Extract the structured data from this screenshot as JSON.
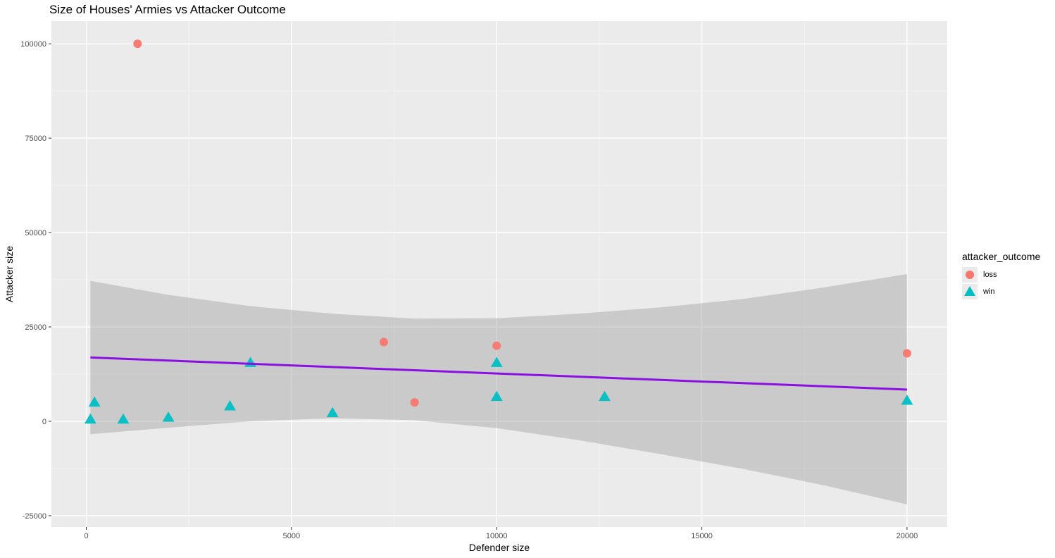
{
  "chart_data": {
    "type": "scatter",
    "title": "Size of Houses' Armies vs Attacker Outcome",
    "xlabel": "Defender size",
    "ylabel": "Attacker size",
    "xlim": [
      -850,
      20980
    ],
    "ylim": [
      -28000,
      106000
    ],
    "x_ticks": [
      0,
      5000,
      10000,
      15000,
      20000
    ],
    "x_tick_labels": [
      "0",
      "5000",
      "10000",
      "15000",
      "20000"
    ],
    "y_ticks": [
      -25000,
      0,
      25000,
      50000,
      75000,
      100000
    ],
    "y_tick_labels": [
      "-25000",
      "0",
      "25000",
      "50000",
      "75000",
      "100000"
    ],
    "grid": true,
    "legend_position": "right",
    "legend_title": "attacker_outcome",
    "series": [
      {
        "name": "loss",
        "shape": "circle",
        "color": "#F8766D",
        "points": [
          {
            "x": 1250,
            "y": 100000
          },
          {
            "x": 7250,
            "y": 21000
          },
          {
            "x": 10000,
            "y": 20000
          },
          {
            "x": 20000,
            "y": 18000
          },
          {
            "x": 8000,
            "y": 5000
          }
        ]
      },
      {
        "name": "win",
        "shape": "triangle",
        "color": "#00BFC4",
        "points": [
          {
            "x": 100,
            "y": 500
          },
          {
            "x": 200,
            "y": 5000
          },
          {
            "x": 900,
            "y": 500
          },
          {
            "x": 2000,
            "y": 1000
          },
          {
            "x": 3500,
            "y": 4000
          },
          {
            "x": 4000,
            "y": 15500
          },
          {
            "x": 6000,
            "y": 2200
          },
          {
            "x": 10000,
            "y": 15500
          },
          {
            "x": 10000,
            "y": 6500
          },
          {
            "x": 12630,
            "y": 6500
          },
          {
            "x": 20000,
            "y": 5500
          }
        ]
      }
    ],
    "trend_line": {
      "color": "#8A0FE0",
      "x": [
        100,
        20000
      ],
      "y": [
        16900,
        8400
      ]
    },
    "confidence_band": {
      "color": "#999999",
      "x": [
        100,
        2000,
        4000,
        6000,
        8000,
        10000,
        12000,
        14000,
        16000,
        18000,
        20000
      ],
      "upper": [
        37200,
        33500,
        30500,
        28500,
        27200,
        27300,
        28500,
        30200,
        32400,
        35500,
        39000
      ],
      "lower": [
        -3400,
        -1700,
        0,
        800,
        300,
        -1800,
        -5000,
        -8700,
        -12600,
        -17000,
        -22000
      ]
    }
  }
}
